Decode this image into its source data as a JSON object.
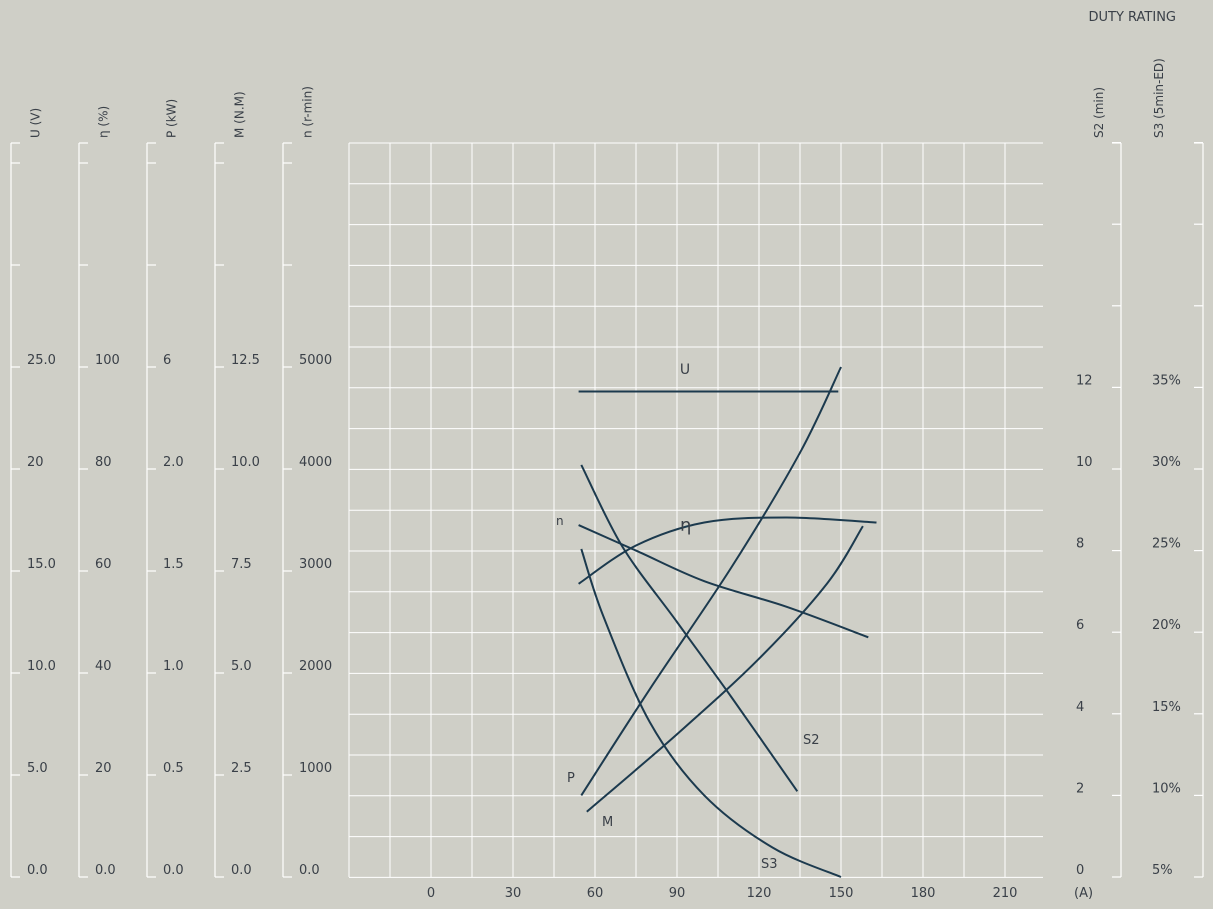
{
  "colors": {
    "background": "#cfcfc7",
    "grid": "#ffffff",
    "curve": "#1c3a4e",
    "text": "#3a4048"
  },
  "header": {
    "duty_rating": "DUTY RATING"
  },
  "chart_data": {
    "type": "line",
    "x_axis": {
      "label": "(A)",
      "ticks": [
        0,
        30,
        60,
        90,
        120,
        150,
        180,
        210
      ],
      "range": [
        -30,
        225
      ]
    },
    "left_scales": [
      {
        "label": "U (V)",
        "ticks": [
          "0.0",
          "5.0",
          "10.0",
          "15.0",
          "20",
          "25.0"
        ]
      },
      {
        "label": "η (%)",
        "ticks": [
          "0.0",
          "20",
          "40",
          "60",
          "80",
          "100"
        ]
      },
      {
        "label": "P (kW)",
        "ticks": [
          "0.0",
          "0.5",
          "1.0",
          "1.5",
          "2.0",
          "6"
        ]
      },
      {
        "label": "M (N.M)",
        "ticks": [
          "0.0",
          "2.5",
          "5.0",
          "7.5",
          "10.0",
          "12.5"
        ]
      },
      {
        "label": "n (r-min)",
        "ticks": [
          "0.0",
          "1000",
          "2000",
          "3000",
          "4000",
          "5000"
        ]
      }
    ],
    "right_scales": [
      {
        "label": "S2 (min)",
        "ticks": [
          "0",
          "2",
          "4",
          "6",
          "8",
          "10",
          "12"
        ]
      },
      {
        "label": "S3 (5min-ED)",
        "ticks": [
          "5%",
          "10%",
          "15%",
          "20%",
          "25%",
          "30%",
          "35%"
        ]
      }
    ],
    "series": [
      {
        "name": "U",
        "unit": "V",
        "points": [
          [
            54,
            23.8
          ],
          [
            95,
            23.8
          ],
          [
            149,
            23.8
          ]
        ]
      },
      {
        "name": "η",
        "unit": "%",
        "points": [
          [
            54,
            57.5
          ],
          [
            75,
            65
          ],
          [
            100,
            69.5
          ],
          [
            130,
            70.5
          ],
          [
            163,
            69.5
          ]
        ]
      },
      {
        "name": "n",
        "unit": "r-min",
        "points": [
          [
            54,
            3450
          ],
          [
            75,
            3200
          ],
          [
            100,
            2900
          ],
          [
            130,
            2650
          ],
          [
            160,
            2350
          ]
        ]
      },
      {
        "name": "P",
        "unit": "kW",
        "points": [
          [
            55,
            0.4
          ],
          [
            80,
            0.92
          ],
          [
            110,
            1.52
          ],
          [
            135,
            2.08
          ],
          [
            150,
            2.5
          ]
        ]
      },
      {
        "name": "M",
        "unit": "N.M",
        "points": [
          [
            57,
            1.6
          ],
          [
            90,
            3.5
          ],
          [
            120,
            5.35
          ],
          [
            145,
            7.2
          ],
          [
            158,
            8.6
          ]
        ]
      },
      {
        "name": "S2",
        "unit": "min",
        "points": [
          [
            55,
            10.1
          ],
          [
            70,
            8.1
          ],
          [
            90,
            6.25
          ],
          [
            110,
            4.4
          ],
          [
            134,
            2.1
          ]
        ]
      },
      {
        "name": "S3",
        "unit": "%",
        "points": [
          [
            55,
            25.1
          ],
          [
            63,
            21.0
          ],
          [
            80,
            14.5
          ],
          [
            100,
            10.0
          ],
          [
            125,
            6.8
          ],
          [
            150,
            5.0
          ]
        ]
      }
    ]
  }
}
